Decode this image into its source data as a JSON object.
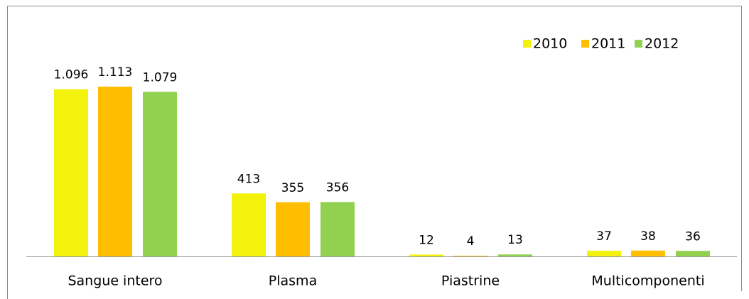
{
  "chart_data": {
    "type": "bar",
    "categories": [
      "Sangue intero",
      "Plasma",
      "Piastrine",
      "Multicomponenti"
    ],
    "series": [
      {
        "name": "2010",
        "color": "#f2f20c",
        "values": [
          1096,
          413,
          12,
          37
        ],
        "value_labels": [
          "1.096",
          "413",
          "12",
          "37"
        ]
      },
      {
        "name": "2011",
        "color": "#ffbf00",
        "values": [
          1113,
          355,
          4,
          38
        ],
        "value_labels": [
          "1.113",
          "355",
          "4",
          "38"
        ]
      },
      {
        "name": "2012",
        "color": "#92d050",
        "values": [
          1079,
          356,
          13,
          36
        ],
        "value_labels": [
          "1.079",
          "356",
          "13",
          "36"
        ]
      }
    ],
    "legend": "top-right"
  }
}
